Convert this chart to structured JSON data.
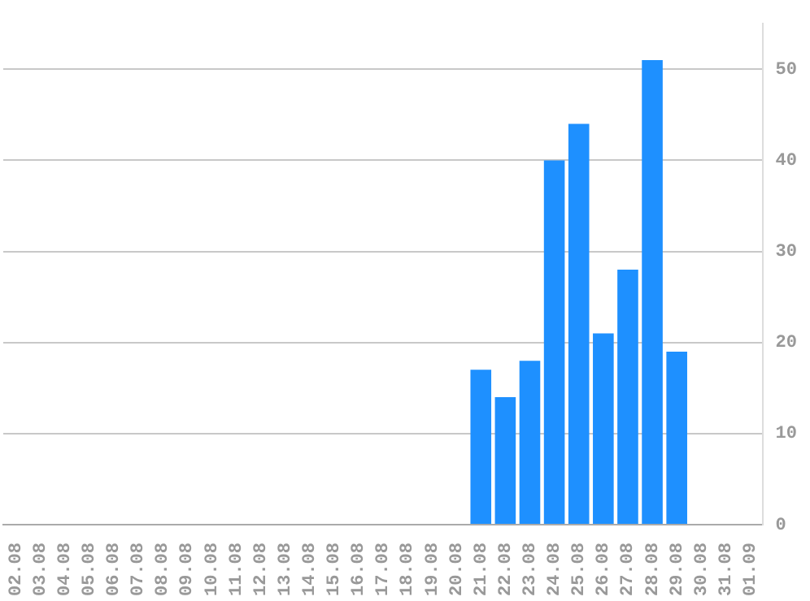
{
  "chart_data": {
    "type": "bar",
    "categories": [
      "02.08",
      "03.08",
      "04.08",
      "05.08",
      "06.08",
      "07.08",
      "08.08",
      "09.08",
      "10.08",
      "11.08",
      "12.08",
      "13.08",
      "14.08",
      "15.08",
      "16.08",
      "17.08",
      "18.08",
      "19.08",
      "20.08",
      "21.08",
      "22.08",
      "23.08",
      "24.08",
      "25.08",
      "26.08",
      "27.08",
      "28.08",
      "29.08",
      "30.08",
      "31.08",
      "01.09"
    ],
    "values": [
      0,
      0,
      0,
      0,
      0,
      0,
      0,
      0,
      0,
      0,
      0,
      0,
      0,
      0,
      0,
      0,
      0,
      0,
      0,
      17,
      14,
      18,
      40,
      44,
      21,
      28,
      51,
      19,
      0,
      0,
      0
    ],
    "color": "#1e90ff",
    "ylim": [
      0,
      55
    ],
    "yticks": [
      0,
      10,
      20,
      30,
      40,
      50
    ],
    "grid": "y",
    "legend": false
  }
}
